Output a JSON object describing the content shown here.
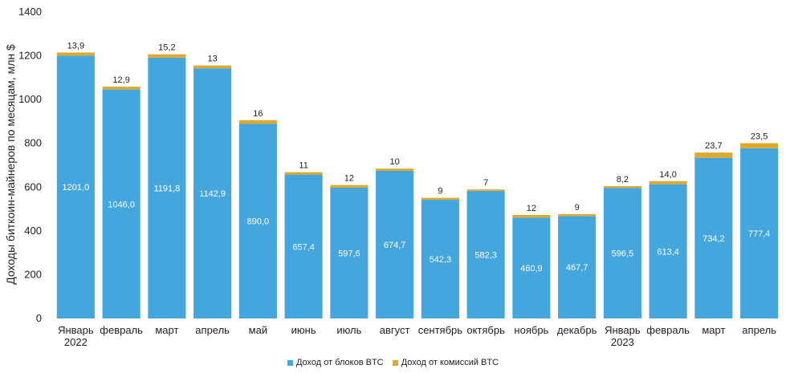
{
  "chart_data": {
    "type": "bar",
    "stacked": true,
    "categories": [
      [
        "Январь",
        "2022"
      ],
      [
        "февраль"
      ],
      [
        "март"
      ],
      [
        "апрель"
      ],
      [
        "май"
      ],
      [
        "июнь"
      ],
      [
        "июль"
      ],
      [
        "август"
      ],
      [
        "сентябрь"
      ],
      [
        "октябрь"
      ],
      [
        "ноябрь"
      ],
      [
        "декабрь"
      ],
      [
        "Январь",
        "2023"
      ],
      [
        "февраль"
      ],
      [
        "март"
      ],
      [
        "апрель"
      ]
    ],
    "series": [
      {
        "name": "Доход от блоков BTC",
        "color": "#45a5dd",
        "values": [
          1201.0,
          1046.0,
          1191.8,
          1142.9,
          890.0,
          657.4,
          597.6,
          674.7,
          542.3,
          582.3,
          460.9,
          467.7,
          596.5,
          613.4,
          734.2,
          777.4
        ],
        "labels": [
          "1201,0",
          "1046,0",
          "1191,8",
          "1142,9",
          "890,0",
          "657,4",
          "597,6",
          "674,7",
          "542,3",
          "582,3",
          "460,9",
          "467,7",
          "596,5",
          "613,4",
          "734,2",
          "777,4"
        ]
      },
      {
        "name": "Доход от комиссий BTC",
        "color": "#e0a92c",
        "values": [
          13.9,
          12.9,
          15.2,
          13,
          16,
          11,
          12,
          10,
          9,
          7,
          12,
          9,
          8.2,
          14.0,
          23.7,
          23.5
        ],
        "labels": [
          "13,9",
          "12,9",
          "15,2",
          "13",
          "16",
          "11",
          "12",
          "10",
          "9",
          "7",
          "12",
          "9",
          "8,2",
          "14,0",
          "23,7",
          "23,5"
        ]
      }
    ],
    "ylabel": "Доходы биткоин-майнеров по месяцам, млн $",
    "ylim": [
      0,
      1400
    ],
    "yticks": [
      0,
      200,
      400,
      600,
      800,
      1000,
      1200,
      1400
    ],
    "grid": false,
    "legend_position": "bottom-center"
  }
}
